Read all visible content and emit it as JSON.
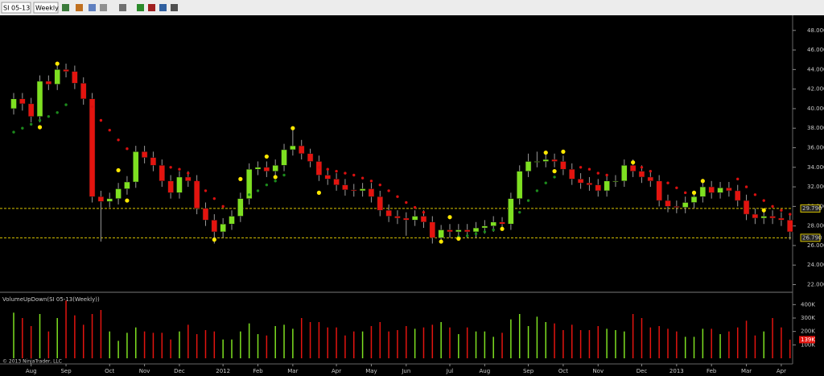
{
  "toolbar": {
    "instrument": "SI 05-13",
    "period": "Weekly"
  },
  "chart_data": {
    "type": "candlestick",
    "open": [
      40.0,
      41.0,
      40.5,
      39.2,
      42.8,
      42.5,
      44.0,
      43.8,
      42.6,
      41.0,
      31.0,
      30.5,
      30.8,
      31.8,
      32.5,
      35.6,
      35.0,
      34.2,
      32.6,
      31.4,
      33.0,
      32.6,
      29.8,
      28.6,
      27.4,
      28.2,
      29.0,
      30.8,
      33.8,
      34.0,
      33.6,
      34.2,
      35.8,
      36.2,
      35.4,
      34.6,
      33.2,
      32.8,
      32.2,
      31.7,
      31.6,
      31.8,
      31.0,
      29.6,
      29.0,
      28.8,
      28.6,
      29.0,
      28.4,
      26.8,
      27.6,
      27.4,
      27.6,
      27.4,
      27.8,
      28.0,
      28.4,
      28.2,
      30.8,
      33.6,
      34.6,
      34.6,
      34.8,
      34.6,
      33.8,
      32.8,
      32.4,
      32.2,
      31.6,
      32.6,
      32.6,
      34.2,
      33.6,
      33.0,
      32.6,
      30.6,
      30.0,
      29.9,
      30.4,
      31.0,
      32.0,
      31.4,
      31.9,
      31.6,
      30.6,
      29.2,
      28.8,
      29.0,
      28.8,
      28.6
    ],
    "high": [
      41.6,
      41.6,
      41.1,
      43.4,
      43.4,
      44.8,
      44.6,
      44.4,
      43.2,
      41.6,
      31.6,
      31.4,
      32.4,
      33.1,
      36.2,
      36.2,
      35.6,
      34.8,
      33.2,
      33.6,
      33.6,
      33.2,
      30.4,
      29.2,
      28.8,
      29.6,
      31.4,
      34.4,
      34.6,
      34.6,
      34.8,
      36.4,
      37.8,
      36.8,
      35.9,
      35.2,
      33.8,
      33.4,
      32.8,
      32.3,
      32.4,
      32.4,
      31.6,
      30.2,
      29.6,
      29.4,
      29.6,
      29.6,
      29.0,
      28.1,
      28.2,
      28.2,
      28.2,
      28.4,
      28.6,
      29.0,
      28.9,
      31.4,
      34.2,
      35.4,
      35.6,
      35.6,
      35.4,
      35.2,
      34.4,
      33.4,
      33.0,
      32.8,
      33.2,
      33.2,
      34.8,
      34.8,
      34.2,
      33.6,
      33.2,
      31.2,
      30.6,
      31.0,
      31.6,
      32.6,
      32.6,
      32.5,
      32.5,
      32.2,
      31.2,
      29.8,
      29.6,
      29.6,
      29.4,
      29.2
    ],
    "low": [
      39.4,
      39.8,
      38.6,
      38.6,
      41.9,
      41.9,
      43.2,
      42.0,
      40.4,
      30.4,
      26.4,
      29.9,
      30.2,
      31.2,
      31.9,
      34.4,
      33.6,
      32.0,
      30.8,
      30.8,
      32.0,
      29.2,
      28.0,
      26.2,
      26.8,
      27.6,
      28.4,
      30.2,
      33.2,
      33.0,
      33.0,
      33.6,
      35.2,
      34.8,
      34.0,
      32.6,
      32.2,
      31.6,
      31.1,
      31.0,
      31.0,
      30.4,
      29.0,
      28.4,
      28.2,
      27.0,
      28.0,
      27.8,
      26.2,
      26.2,
      26.8,
      26.8,
      26.8,
      26.8,
      27.2,
      27.4,
      27.6,
      27.6,
      30.2,
      33.0,
      34.0,
      34.0,
      34.0,
      33.2,
      32.2,
      31.8,
      31.6,
      31.0,
      31.0,
      32.0,
      32.0,
      33.0,
      32.4,
      32.0,
      30.0,
      29.4,
      29.3,
      29.3,
      29.8,
      30.4,
      30.8,
      30.8,
      31.0,
      30.0,
      28.6,
      28.2,
      28.2,
      28.2,
      28.0,
      26.6
    ],
    "close": [
      41.0,
      40.5,
      39.2,
      42.8,
      42.5,
      44.0,
      43.8,
      42.6,
      41.0,
      31.0,
      30.5,
      30.8,
      31.8,
      32.5,
      35.6,
      35.0,
      34.2,
      32.6,
      31.4,
      33.0,
      32.6,
      29.8,
      28.6,
      27.4,
      28.2,
      29.0,
      30.8,
      33.8,
      34.0,
      33.6,
      34.2,
      35.8,
      36.2,
      35.4,
      34.6,
      33.2,
      32.8,
      32.2,
      31.7,
      31.6,
      31.8,
      31.0,
      29.6,
      29.0,
      28.8,
      28.6,
      29.0,
      28.4,
      26.8,
      27.6,
      27.4,
      27.6,
      27.4,
      27.8,
      28.0,
      28.4,
      28.2,
      30.8,
      33.6,
      34.6,
      34.6,
      34.8,
      34.6,
      33.8,
      32.8,
      32.4,
      32.2,
      31.6,
      32.6,
      32.6,
      34.2,
      33.6,
      33.0,
      32.6,
      30.6,
      30.0,
      29.9,
      30.4,
      31.0,
      32.0,
      31.4,
      31.9,
      31.6,
      30.6,
      29.2,
      28.8,
      29.0,
      28.8,
      28.6,
      27.4
    ],
    "trail": [
      37.6,
      38.0,
      38.4,
      38.8,
      39.2,
      39.6,
      40.4,
      null,
      null,
      40.2,
      38.8,
      37.8,
      36.8,
      35.9,
      null,
      null,
      null,
      null,
      34.0,
      33.8,
      33.4,
      32.5,
      31.6,
      30.8,
      30.0,
      null,
      null,
      31.2,
      31.6,
      32.2,
      32.6,
      33.2,
      null,
      null,
      null,
      34.0,
      33.8,
      33.6,
      33.4,
      33.2,
      32.9,
      32.6,
      32.2,
      31.6,
      31.0,
      30.4,
      29.9,
      29.4,
      null,
      null,
      null,
      26.9,
      27.0,
      27.2,
      27.4,
      27.6,
      27.8,
      null,
      29.4,
      30.6,
      31.6,
      32.4,
      33.0,
      null,
      null,
      34.0,
      33.8,
      33.4,
      33.2,
      null,
      null,
      null,
      34.0,
      33.6,
      null,
      32.4,
      31.9,
      31.4,
      null,
      null,
      null,
      null,
      null,
      32.8,
      32.0,
      31.2,
      30.6,
      30.0,
      29.6,
      29.2
    ],
    "swings": [
      null,
      null,
      null,
      38.1,
      null,
      44.6,
      null,
      null,
      null,
      null,
      null,
      null,
      33.7,
      30.6,
      null,
      null,
      null,
      null,
      null,
      null,
      null,
      null,
      null,
      26.6,
      null,
      null,
      32.8,
      null,
      null,
      35.1,
      33.0,
      null,
      38.0,
      null,
      null,
      31.4,
      null,
      null,
      null,
      null,
      null,
      null,
      null,
      null,
      null,
      null,
      null,
      null,
      null,
      26.4,
      28.9,
      26.7,
      null,
      null,
      null,
      null,
      27.7,
      null,
      null,
      null,
      null,
      35.5,
      33.6,
      35.6,
      null,
      null,
      null,
      null,
      null,
      null,
      null,
      34.5,
      null,
      null,
      null,
      null,
      null,
      null,
      31.4,
      32.6,
      null,
      null,
      null,
      null,
      null,
      null,
      29.6,
      null,
      null,
      null
    ],
    "volume": [
      340000,
      300000,
      240000,
      330000,
      200000,
      300000,
      430000,
      320000,
      250000,
      330000,
      360000,
      200000,
      130000,
      190000,
      230000,
      200000,
      190000,
      190000,
      140000,
      200000,
      250000,
      180000,
      210000,
      200000,
      140000,
      140000,
      200000,
      260000,
      180000,
      170000,
      240000,
      250000,
      220000,
      300000,
      270000,
      270000,
      230000,
      230000,
      170000,
      200000,
      200000,
      240000,
      270000,
      200000,
      210000,
      240000,
      220000,
      230000,
      250000,
      270000,
      230000,
      180000,
      230000,
      200000,
      200000,
      160000,
      190000,
      290000,
      330000,
      240000,
      310000,
      270000,
      260000,
      210000,
      250000,
      210000,
      210000,
      240000,
      220000,
      210000,
      200000,
      330000,
      300000,
      230000,
      240000,
      220000,
      200000,
      160000,
      160000,
      220000,
      220000,
      180000,
      200000,
      230000,
      280000,
      170000,
      200000,
      300000,
      230000,
      139000
    ],
    "volume_last_label": "139K",
    "volume_title": "VolumeUpDown(SI 05-13(Weekly))",
    "copyright": "© 2013 NinjaTrader, LLC",
    "up_color": "#7ee021",
    "down_color": "#e3140f",
    "trail_colors": {
      "above": "#d81010",
      "below": "#1c8a1c"
    },
    "swing_color": "#ffe800",
    "level_color": "#d8c400",
    "ylim": [
      21.3,
      49.3
    ],
    "yticks": [
      {
        "value": 22,
        "label": "22.000"
      },
      {
        "value": 24,
        "label": "24.000"
      },
      {
        "value": 26,
        "label": "26.000"
      },
      {
        "value": 28,
        "label": "28.000"
      },
      {
        "value": 30,
        "label": "30.000"
      },
      {
        "value": 32,
        "label": "32.000"
      },
      {
        "value": 34,
        "label": "34.000"
      },
      {
        "value": 36,
        "label": "36.000"
      },
      {
        "value": 38,
        "label": "38.000"
      },
      {
        "value": 40,
        "label": "40.000"
      },
      {
        "value": 42,
        "label": "42.000"
      },
      {
        "value": 44,
        "label": "44.000"
      },
      {
        "value": 46,
        "label": "46.000"
      },
      {
        "value": 48,
        "label": "48.000"
      }
    ],
    "levels": [
      {
        "value": 29.79,
        "label": "29.790"
      },
      {
        "value": 26.79,
        "label": "26.790"
      }
    ],
    "vlim": [
      0,
      480000
    ],
    "vticks": [
      {
        "value": 100000,
        "label": "100K"
      },
      {
        "value": 200000,
        "label": "200K"
      },
      {
        "value": 300000,
        "label": "300K"
      },
      {
        "value": 400000,
        "label": "400K"
      }
    ],
    "xticks": [
      {
        "value": 2,
        "label": "Aug"
      },
      {
        "value": 6,
        "label": "Sep"
      },
      {
        "value": 11,
        "label": "Oct"
      },
      {
        "value": 15,
        "label": "Nov"
      },
      {
        "value": 19,
        "label": "Dec"
      },
      {
        "value": 24,
        "label": "2012"
      },
      {
        "value": 28,
        "label": "Feb"
      },
      {
        "value": 32,
        "label": "Mar"
      },
      {
        "value": 37,
        "label": "Apr"
      },
      {
        "value": 41,
        "label": "May"
      },
      {
        "value": 45,
        "label": "Jun"
      },
      {
        "value": 50,
        "label": "Jul"
      },
      {
        "value": 54,
        "label": "Aug"
      },
      {
        "value": 59,
        "label": "Sep"
      },
      {
        "value": 63,
        "label": "Oct"
      },
      {
        "value": 67,
        "label": "Nov"
      },
      {
        "value": 72,
        "label": "Dec"
      },
      {
        "value": 76,
        "label": "2013"
      },
      {
        "value": 80,
        "label": "Feb"
      },
      {
        "value": 84,
        "label": "Mar"
      },
      {
        "value": 88,
        "label": "Apr"
      }
    ]
  }
}
